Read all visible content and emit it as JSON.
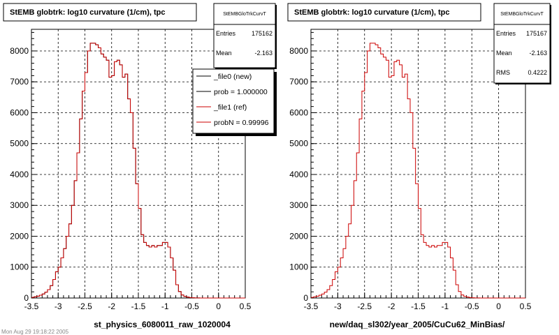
{
  "chart_data": [
    {
      "type": "line",
      "title": "StEMB globtrk: log10 curvature (1/cm), tpc",
      "xlabel": "st_physics_6080011_raw_1020004",
      "ylabel": "",
      "xlim": [
        -3.5,
        0.5
      ],
      "ylim": [
        0,
        8700
      ],
      "x_ticks": [
        "-3.5",
        "-3",
        "-2.5",
        "-2",
        "-1.5",
        "-1",
        "-0.5",
        "0",
        "0.5"
      ],
      "y_ticks": [
        "0",
        "1000",
        "2000",
        "3000",
        "4000",
        "5000",
        "6000",
        "7000",
        "8000"
      ],
      "grid": true,
      "bin_width": 0.05,
      "bin_start": -3.5,
      "series": [
        {
          "name": "_file0 (new)",
          "color": "#000000",
          "values": [
            20,
            40,
            60,
            90,
            130,
            190,
            270,
            400,
            600,
            850,
            1000,
            1300,
            1600,
            2000,
            2400,
            3000,
            3800,
            4700,
            5800,
            6700,
            7300,
            8000,
            8250,
            8250,
            8200,
            8100,
            7900,
            7800,
            7700,
            7150,
            7200,
            7650,
            7700,
            7550,
            7150,
            7250,
            6450,
            6000,
            4850,
            3700,
            2900,
            2050,
            1800,
            1700,
            1650,
            1700,
            1650,
            1700,
            1700,
            1800,
            1800,
            1650,
            1300,
            900,
            430,
            210,
            100,
            50,
            30,
            15,
            8,
            4,
            2,
            1,
            0,
            0,
            0,
            0,
            0,
            0,
            0,
            0,
            0,
            0,
            0,
            0,
            0,
            0,
            0,
            0
          ]
        },
        {
          "name": "_file1 (ref)",
          "color": "#cc0000",
          "values": [
            20,
            40,
            60,
            90,
            130,
            190,
            270,
            400,
            600,
            850,
            1000,
            1300,
            1600,
            2000,
            2400,
            3000,
            3800,
            4700,
            5800,
            6700,
            7300,
            8000,
            8250,
            8250,
            8200,
            8100,
            7900,
            7800,
            7700,
            7150,
            7200,
            7650,
            7700,
            7550,
            7150,
            7250,
            6450,
            6000,
            4850,
            3700,
            2900,
            2050,
            1800,
            1700,
            1650,
            1700,
            1650,
            1700,
            1700,
            1800,
            1800,
            1650,
            1300,
            900,
            430,
            210,
            100,
            50,
            30,
            15,
            8,
            4,
            2,
            1,
            0,
            0,
            0,
            0,
            0,
            0,
            0,
            0,
            0,
            0,
            0,
            0,
            0,
            0,
            0,
            0
          ]
        }
      ],
      "stats": {
        "name": "StEMBGloTrkCurvT",
        "entries_label": "Entries",
        "entries": "175162",
        "mean_label": "Mean",
        "mean": "-2.163"
      },
      "legend": {
        "position": "top-right",
        "entries": [
          "_file0 (new)",
          "prob = 1.000000",
          "_file1 (ref)",
          "probN = 0.99996"
        ],
        "colors": [
          "#000000",
          "#000000",
          "#cc0000",
          "#cc0000"
        ]
      }
    },
    {
      "type": "line",
      "title": "StEMB globtrk: log10 curvature (1/cm), tpc",
      "xlabel": "new/daq_sl302/year_2005/CuCu62_MinBias/",
      "ylabel": "",
      "xlim": [
        -3.5,
        0.5
      ],
      "ylim": [
        0,
        8700
      ],
      "x_ticks": [
        "-3.5",
        "-3",
        "-2.5",
        "-2",
        "-1.5",
        "-1",
        "-0.5",
        "0",
        "0.5"
      ],
      "y_ticks": [
        "0",
        "1000",
        "2000",
        "3000",
        "4000",
        "5000",
        "6000",
        "7000",
        "8000"
      ],
      "grid": true,
      "bin_width": 0.05,
      "bin_start": -3.5,
      "series": [
        {
          "name": "",
          "color": "#cc0000",
          "values": [
            20,
            40,
            60,
            90,
            130,
            190,
            270,
            400,
            600,
            850,
            1000,
            1300,
            1600,
            2000,
            2400,
            3000,
            3800,
            4700,
            5800,
            6700,
            7300,
            8000,
            8250,
            8250,
            8200,
            8100,
            7900,
            7800,
            7700,
            7150,
            7200,
            7650,
            7700,
            7550,
            7150,
            7250,
            6450,
            6000,
            4850,
            3700,
            2900,
            2050,
            1800,
            1700,
            1650,
            1700,
            1650,
            1700,
            1700,
            1800,
            1800,
            1650,
            1300,
            900,
            430,
            210,
            100,
            50,
            30,
            15,
            8,
            4,
            2,
            1,
            0,
            0,
            0,
            0,
            0,
            0,
            0,
            0,
            0,
            0,
            0,
            0,
            0,
            0,
            0,
            0
          ]
        }
      ],
      "stats": {
        "name": "StEMBGloTrkCurvT",
        "entries_label": "Entries",
        "entries": "175167",
        "mean_label": "Mean",
        "mean": "-2.163",
        "rms_label": "RMS",
        "rms": "0.4222"
      }
    }
  ],
  "footer": {
    "text": "Mon Aug 29 19:18:22 2005"
  }
}
